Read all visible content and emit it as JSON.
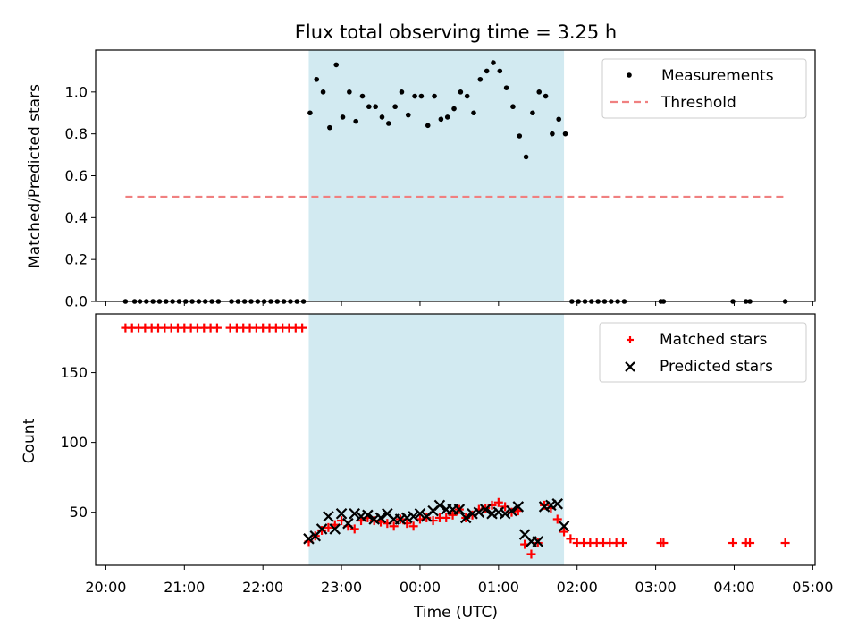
{
  "chart_data": {
    "type": "scatter",
    "title": "Flux total observing time = 3.25 h",
    "xlabel": "Time (UTC)",
    "x_tick_labels": [
      "20:00",
      "21:00",
      "22:00",
      "23:00",
      "00:00",
      "01:00",
      "02:00",
      "03:00",
      "04:00",
      "05:00"
    ],
    "x_range_hours": [
      19.87,
      29.03
    ],
    "observing_window": {
      "start": "22:35",
      "end": "01:50",
      "color": "#add8e6"
    },
    "top_panel": {
      "ylabel": "Matched/Predicted stars",
      "ylim": [
        0,
        1.2
      ],
      "yticks": [
        "0.0",
        "0.2",
        "0.4",
        "0.6",
        "0.8",
        "1.0"
      ],
      "legend": {
        "placement": "top-right",
        "entries": [
          "Measurements",
          "Threshold"
        ]
      },
      "threshold": {
        "name": "Threshold",
        "value": 0.5,
        "x_start": "20:15",
        "x_end": "04:40",
        "color": "#f08080"
      },
      "measurements": {
        "name": "Measurements",
        "color": "#000000",
        "x": [
          "20:15",
          "20:22",
          "20:26",
          "20:31",
          "20:36",
          "20:41",
          "20:46",
          "20:51",
          "20:56",
          "21:01",
          "21:06",
          "21:11",
          "21:16",
          "21:21",
          "21:26",
          "21:36",
          "21:41",
          "21:46",
          "21:51",
          "21:56",
          "22:01",
          "22:06",
          "22:11",
          "22:16",
          "22:21",
          "22:26",
          "22:31",
          "22:36",
          "22:41",
          "22:46",
          "22:51",
          "22:56",
          "23:01",
          "23:06",
          "23:11",
          "23:16",
          "23:21",
          "23:26",
          "23:31",
          "23:36",
          "23:41",
          "23:46",
          "23:51",
          "23:56",
          "00:01",
          "00:06",
          "00:11",
          "00:16",
          "00:21",
          "00:26",
          "00:31",
          "00:36",
          "00:41",
          "00:46",
          "00:51",
          "00:56",
          "01:01",
          "01:06",
          "01:11",
          "01:16",
          "01:21",
          "01:26",
          "01:31",
          "01:36",
          "01:41",
          "01:46",
          "01:51",
          "01:56",
          "02:01",
          "02:06",
          "02:11",
          "02:16",
          "02:21",
          "02:26",
          "02:31",
          "02:36",
          "03:04",
          "03:06",
          "03:59",
          "04:09",
          "04:12",
          "04:39"
        ],
        "y": [
          0,
          0,
          0,
          0,
          0,
          0,
          0,
          0,
          0,
          0,
          0,
          0,
          0,
          0,
          0,
          0,
          0,
          0,
          0,
          0,
          0,
          0,
          0,
          0,
          0,
          0,
          0,
          0.9,
          1.06,
          1.0,
          0.83,
          1.13,
          0.88,
          1.0,
          0.86,
          0.98,
          0.93,
          0.93,
          0.88,
          0.85,
          0.93,
          1.0,
          0.89,
          0.98,
          0.98,
          0.84,
          0.98,
          0.87,
          0.88,
          0.92,
          1.0,
          0.98,
          0.9,
          1.06,
          1.1,
          1.14,
          1.1,
          1.02,
          0.93,
          0.79,
          0.69,
          0.9,
          1.0,
          0.98,
          0.8,
          0.87,
          0.8,
          0,
          0,
          0,
          0,
          0,
          0,
          0,
          0,
          0,
          0,
          0,
          0,
          0,
          0,
          0
        ]
      }
    },
    "bottom_panel": {
      "ylabel": "Count",
      "ylim": [
        12,
        192
      ],
      "yticks": [
        "50",
        "100",
        "150"
      ],
      "legend": {
        "placement": "top-right",
        "entries": [
          "Matched stars",
          "Predicted stars"
        ]
      },
      "series": [
        {
          "name": "Matched stars",
          "marker": "plus",
          "color": "#ff0000",
          "x": [
            "20:15",
            "20:20",
            "20:25",
            "20:30",
            "20:35",
            "20:40",
            "20:45",
            "20:50",
            "20:55",
            "21:00",
            "21:05",
            "21:10",
            "21:15",
            "21:20",
            "21:25",
            "21:35",
            "21:40",
            "21:45",
            "21:50",
            "21:55",
            "22:00",
            "22:05",
            "22:10",
            "22:15",
            "22:20",
            "22:25",
            "22:30",
            "22:35",
            "22:40",
            "22:45",
            "22:50",
            "22:55",
            "23:00",
            "23:05",
            "23:10",
            "23:15",
            "23:20",
            "23:25",
            "23:30",
            "23:35",
            "23:40",
            "23:45",
            "23:50",
            "23:55",
            "00:00",
            "00:05",
            "00:10",
            "00:15",
            "00:20",
            "00:25",
            "00:30",
            "00:35",
            "00:40",
            "00:45",
            "00:50",
            "00:55",
            "01:00",
            "01:05",
            "01:10",
            "01:15",
            "01:20",
            "01:25",
            "01:30",
            "01:35",
            "01:40",
            "01:45",
            "01:50",
            "01:55",
            "02:00",
            "02:05",
            "02:10",
            "02:15",
            "02:20",
            "02:25",
            "02:30",
            "02:35",
            "03:04",
            "03:06",
            "03:59",
            "04:09",
            "04:12",
            "04:39"
          ],
          "y": [
            182,
            182,
            182,
            182,
            182,
            182,
            182,
            182,
            182,
            182,
            182,
            182,
            182,
            182,
            182,
            182,
            182,
            182,
            182,
            182,
            182,
            182,
            182,
            182,
            182,
            182,
            182,
            29,
            33,
            37,
            39,
            41,
            44,
            40,
            38,
            44,
            46,
            44,
            43,
            42,
            40,
            45,
            42,
            40,
            45,
            46,
            44,
            46,
            46,
            48,
            52,
            46,
            48,
            52,
            53,
            55,
            57,
            54,
            50,
            51,
            27,
            20,
            28,
            55,
            53,
            45,
            36,
            31,
            28,
            28,
            28,
            28,
            28,
            28,
            28,
            28,
            28,
            28,
            28,
            28,
            28,
            28
          ]
        },
        {
          "name": "Predicted stars",
          "marker": "x",
          "color": "#000000",
          "x": [
            "22:35",
            "22:40",
            "22:45",
            "22:50",
            "22:55",
            "23:00",
            "23:05",
            "23:10",
            "23:15",
            "23:20",
            "23:25",
            "23:30",
            "23:35",
            "23:40",
            "23:45",
            "23:50",
            "23:55",
            "00:00",
            "00:05",
            "00:10",
            "00:15",
            "00:20",
            "00:25",
            "00:30",
            "00:35",
            "00:40",
            "00:45",
            "00:50",
            "00:55",
            "01:00",
            "01:05",
            "01:10",
            "01:15",
            "01:20",
            "01:25",
            "01:30",
            "01:35",
            "01:40",
            "01:45",
            "01:50"
          ],
          "y": [
            31,
            33,
            38,
            47,
            38,
            49,
            42,
            49,
            47,
            48,
            45,
            46,
            49,
            45,
            45,
            46,
            47,
            49,
            47,
            51,
            55,
            52,
            52,
            52,
            46,
            49,
            50,
            52,
            49,
            50,
            49,
            51,
            54,
            34,
            29,
            29,
            54,
            55,
            56,
            40
          ]
        }
      ]
    }
  }
}
